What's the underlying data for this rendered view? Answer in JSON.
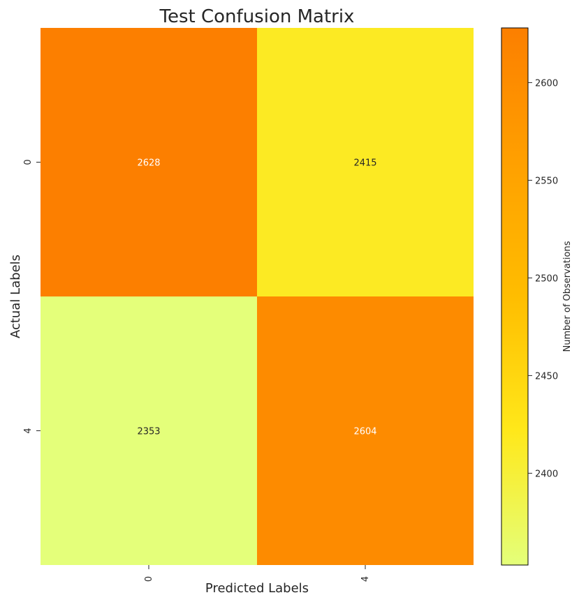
{
  "chart_data": {
    "type": "heatmap",
    "title": "Test Confusion Matrix",
    "xlabel": "Predicted Labels",
    "ylabel": "Actual Labels",
    "x_categories": [
      "0",
      "4"
    ],
    "y_categories": [
      "0",
      "4"
    ],
    "values": [
      [
        2628,
        2415
      ],
      [
        2353,
        2604
      ]
    ],
    "colorbar": {
      "label": "Number of Observations",
      "ticks": [
        2400,
        2450,
        2500,
        2550,
        2600
      ],
      "range": [
        2353,
        2628
      ],
      "colormap": "Wistia",
      "colors": [
        "#e4ff7a",
        "#ffe81a",
        "#ffbd00",
        "#ffa000",
        "#fc7f00"
      ]
    },
    "annotation_colors": {
      "light": "#ffffff",
      "dark": "#262626"
    }
  }
}
